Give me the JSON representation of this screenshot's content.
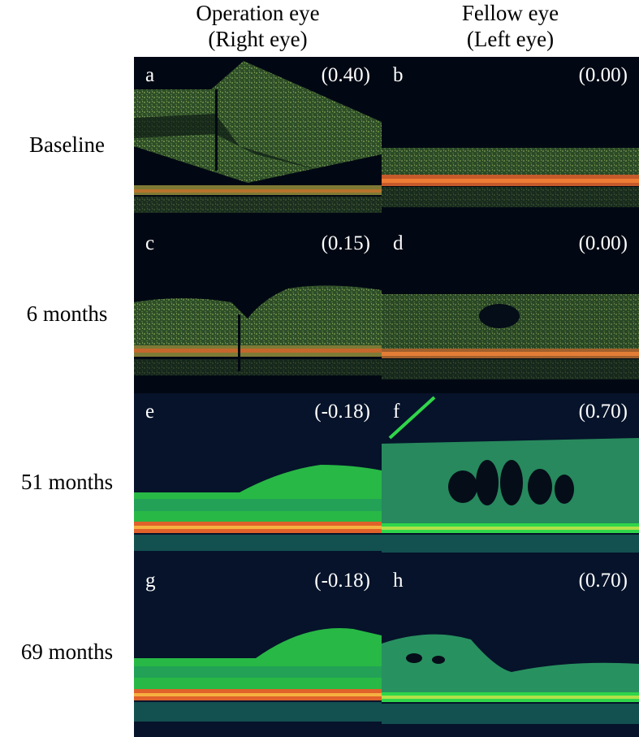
{
  "columns": [
    {
      "title": "Operation eye",
      "subtitle": "(Right eye)"
    },
    {
      "title": "Fellow eye",
      "subtitle": "(Left eye)"
    }
  ],
  "rows": [
    {
      "label": "Baseline"
    },
    {
      "label": "6 months"
    },
    {
      "label": "51 months"
    },
    {
      "label": "69 months"
    }
  ],
  "panels": [
    {
      "letter": "a",
      "value": "(0.40)"
    },
    {
      "letter": "b",
      "value": "(0.00)"
    },
    {
      "letter": "c",
      "value": "(0.15)"
    },
    {
      "letter": "d",
      "value": "(0.00)"
    },
    {
      "letter": "e",
      "value": "(-0.18)"
    },
    {
      "letter": "f",
      "value": "(0.70)"
    },
    {
      "letter": "g",
      "value": "(-0.18)"
    },
    {
      "letter": "h",
      "value": "(0.70)"
    }
  ],
  "colors": {
    "background": "#020813",
    "retina_speckle": "#4e8a3a",
    "rpe_band": "#e0622a",
    "bright_green": "#2fd64a",
    "label": "#ffffff"
  }
}
